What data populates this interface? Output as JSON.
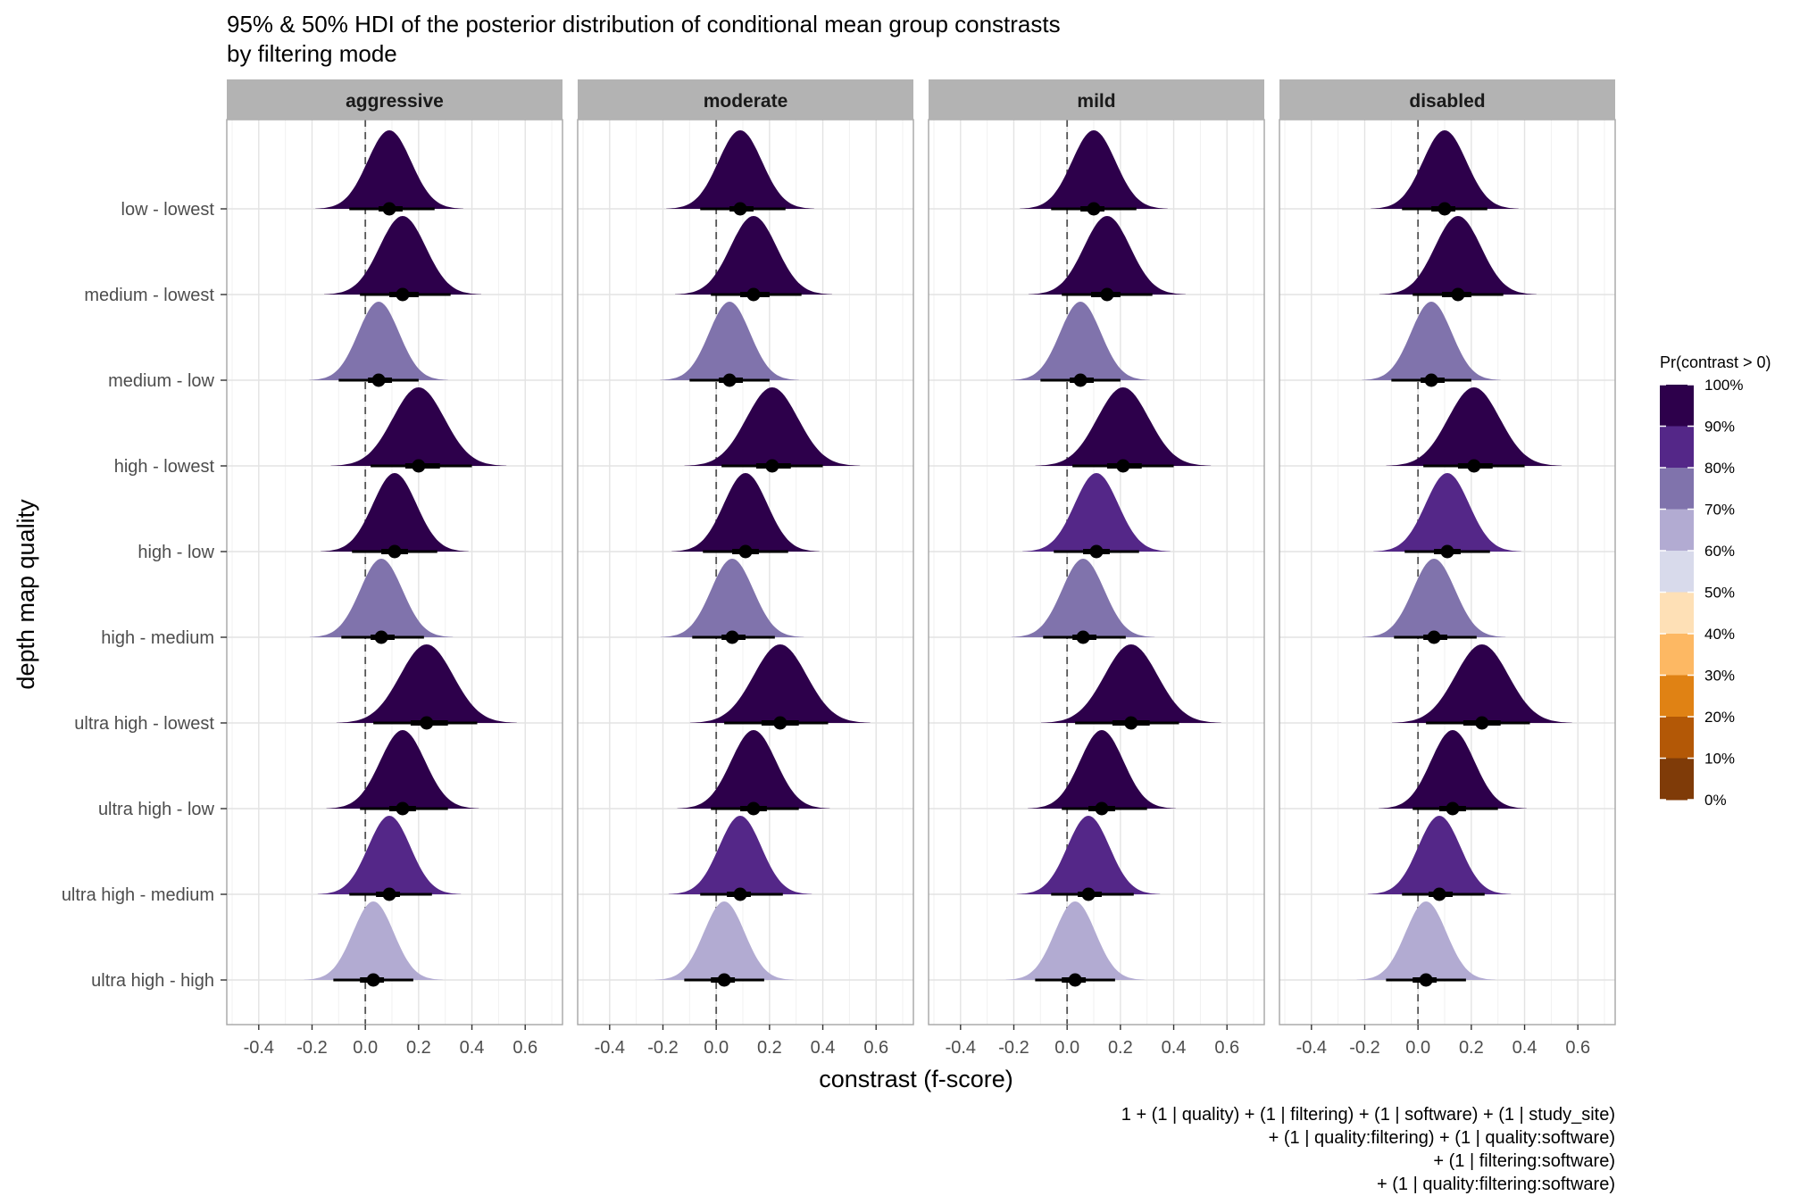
{
  "chart_data": {
    "type": "halfeye",
    "title": "95% & 50% HDI of the posterior distribution of conditional mean group constrasts",
    "subtitle": "by filtering mode",
    "xlabel": "constrast (f-score)",
    "ylabel": "depth map quality",
    "caption": [
      "1 + (1 | quality) + (1 | filtering) + (1 | software) + (1 | study_site)",
      "+ (1 | quality:filtering) + (1 | quality:software)",
      "+ (1 | filtering:software)",
      "+ (1 | quality:filtering:software)"
    ],
    "xlim": [
      -0.52,
      0.74
    ],
    "x_ticks": [
      -0.4,
      -0.2,
      0.0,
      0.2,
      0.4,
      0.6
    ],
    "x_tick_labels": [
      "-0.4",
      "-0.2",
      "0.0",
      "0.2",
      "0.4",
      "0.6"
    ],
    "reference_line_x": 0.0,
    "grid": true,
    "facets": [
      "aggressive",
      "moderate",
      "mild",
      "disabled"
    ],
    "categories": [
      "low - lowest",
      "medium - lowest",
      "medium - low",
      "high - lowest",
      "high - low",
      "high - medium",
      "ultra high - lowest",
      "ultra high - low",
      "ultra high - medium",
      "ultra high - high"
    ],
    "legend": {
      "title": "Pr(contrast > 0)",
      "position": "right",
      "labels": [
        "100%",
        "90%",
        "80%",
        "70%",
        "60%",
        "50%",
        "40%",
        "30%",
        "20%",
        "10%",
        "0%"
      ],
      "colors": [
        "#2d004b",
        "#542788",
        "#8073ac",
        "#b2abd2",
        "#d8daeb",
        "#fee0b6",
        "#fdb863",
        "#e08214",
        "#b35806",
        "#7f3b08"
      ]
    },
    "series": [
      {
        "facet": "aggressive",
        "median": [
          0.09,
          0.14,
          0.05,
          0.2,
          0.11,
          0.06,
          0.23,
          0.14,
          0.09,
          0.03
        ],
        "hdi50": [
          [
            0.05,
            0.14
          ],
          [
            0.09,
            0.2
          ],
          [
            0.01,
            0.1
          ],
          [
            0.15,
            0.28
          ],
          [
            0.06,
            0.16
          ],
          [
            0.02,
            0.11
          ],
          [
            0.17,
            0.31
          ],
          [
            0.09,
            0.19
          ],
          [
            0.04,
            0.13
          ],
          [
            -0.02,
            0.07
          ]
        ],
        "hdi95": [
          [
            -0.06,
            0.26
          ],
          [
            -0.02,
            0.32
          ],
          [
            -0.1,
            0.2
          ],
          [
            0.02,
            0.4
          ],
          [
            -0.05,
            0.27
          ],
          [
            -0.09,
            0.22
          ],
          [
            0.03,
            0.42
          ],
          [
            -0.02,
            0.31
          ],
          [
            -0.06,
            0.25
          ],
          [
            -0.12,
            0.18
          ]
        ],
        "pr_gt_0": [
          0.9,
          0.95,
          0.75,
          0.98,
          0.92,
          0.78,
          0.98,
          0.95,
          0.89,
          0.63
        ]
      },
      {
        "facet": "moderate",
        "median": [
          0.09,
          0.14,
          0.05,
          0.21,
          0.11,
          0.06,
          0.24,
          0.14,
          0.09,
          0.03
        ],
        "hdi50": [
          [
            0.05,
            0.14
          ],
          [
            0.09,
            0.2
          ],
          [
            0.01,
            0.1
          ],
          [
            0.15,
            0.28
          ],
          [
            0.06,
            0.16
          ],
          [
            0.02,
            0.11
          ],
          [
            0.17,
            0.31
          ],
          [
            0.09,
            0.19
          ],
          [
            0.04,
            0.13
          ],
          [
            -0.02,
            0.07
          ]
        ],
        "hdi95": [
          [
            -0.06,
            0.26
          ],
          [
            -0.02,
            0.32
          ],
          [
            -0.1,
            0.2
          ],
          [
            0.02,
            0.4
          ],
          [
            -0.05,
            0.27
          ],
          [
            -0.09,
            0.22
          ],
          [
            0.03,
            0.42
          ],
          [
            -0.02,
            0.31
          ],
          [
            -0.06,
            0.25
          ],
          [
            -0.12,
            0.18
          ]
        ],
        "pr_gt_0": [
          0.9,
          0.95,
          0.75,
          0.98,
          0.92,
          0.78,
          0.98,
          0.95,
          0.89,
          0.63
        ]
      },
      {
        "facet": "mild",
        "median": [
          0.1,
          0.15,
          0.05,
          0.21,
          0.11,
          0.06,
          0.24,
          0.13,
          0.08,
          0.03
        ],
        "hdi50": [
          [
            0.05,
            0.14
          ],
          [
            0.09,
            0.2
          ],
          [
            0.01,
            0.1
          ],
          [
            0.15,
            0.28
          ],
          [
            0.06,
            0.16
          ],
          [
            0.02,
            0.11
          ],
          [
            0.17,
            0.31
          ],
          [
            0.08,
            0.18
          ],
          [
            0.04,
            0.13
          ],
          [
            -0.02,
            0.07
          ]
        ],
        "hdi95": [
          [
            -0.06,
            0.26
          ],
          [
            -0.02,
            0.32
          ],
          [
            -0.1,
            0.2
          ],
          [
            0.02,
            0.4
          ],
          [
            -0.05,
            0.27
          ],
          [
            -0.09,
            0.22
          ],
          [
            0.03,
            0.42
          ],
          [
            -0.02,
            0.3
          ],
          [
            -0.06,
            0.25
          ],
          [
            -0.12,
            0.18
          ]
        ],
        "pr_gt_0": [
          0.9,
          0.95,
          0.75,
          0.98,
          0.89,
          0.78,
          0.98,
          0.94,
          0.89,
          0.63
        ]
      },
      {
        "facet": "disabled",
        "median": [
          0.1,
          0.15,
          0.05,
          0.21,
          0.11,
          0.06,
          0.24,
          0.13,
          0.08,
          0.03
        ],
        "hdi50": [
          [
            0.05,
            0.14
          ],
          [
            0.09,
            0.2
          ],
          [
            0.01,
            0.1
          ],
          [
            0.15,
            0.28
          ],
          [
            0.06,
            0.16
          ],
          [
            0.02,
            0.11
          ],
          [
            0.17,
            0.31
          ],
          [
            0.08,
            0.18
          ],
          [
            0.04,
            0.13
          ],
          [
            -0.02,
            0.07
          ]
        ],
        "hdi95": [
          [
            -0.06,
            0.26
          ],
          [
            -0.02,
            0.32
          ],
          [
            -0.1,
            0.2
          ],
          [
            0.02,
            0.4
          ],
          [
            -0.05,
            0.27
          ],
          [
            -0.09,
            0.22
          ],
          [
            0.03,
            0.42
          ],
          [
            -0.02,
            0.3
          ],
          [
            -0.06,
            0.25
          ],
          [
            -0.12,
            0.18
          ]
        ],
        "pr_gt_0": [
          0.9,
          0.95,
          0.75,
          0.98,
          0.89,
          0.78,
          0.98,
          0.94,
          0.89,
          0.63
        ]
      }
    ]
  }
}
